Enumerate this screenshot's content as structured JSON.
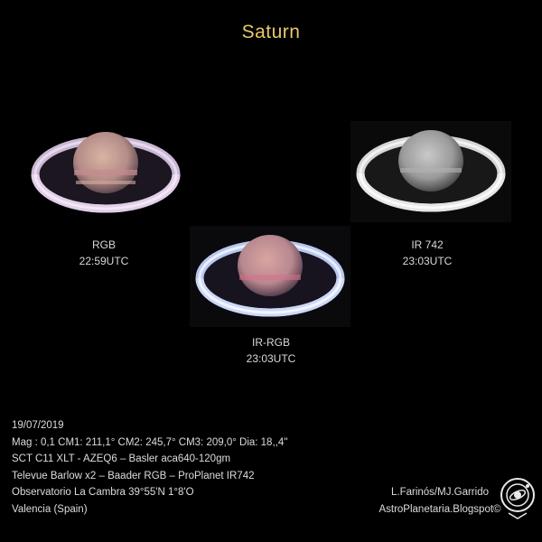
{
  "title": "Saturn",
  "images": [
    {
      "filter": "RGB",
      "time": "22:59UTC"
    },
    {
      "filter": "IR 742",
      "time": "23:03UTC"
    },
    {
      "filter": "IR-RGB",
      "time": "23:03UTC"
    }
  ],
  "info_lines": [
    "19/07/2019",
    "Mag : 0,1 CM1: 211,1° CM2: 245,7° CM3: 209,0° Dia: 18,,4''",
    "SCT C11 XLT - AZEQ6 – Basler aca640-120gm",
    "Televue Barlow x2 – Baader  RGB – ProPlanet IR742",
    "Observatorio La Cambra 39°55'N  1°8'O",
    "Valencia (Spain)"
  ],
  "credits": [
    "L.Farinós/MJ.Garrido",
    "AstroPlanetaria.Blogspot©"
  ],
  "colors": {
    "title": "#e8c968",
    "background": "#000000"
  }
}
